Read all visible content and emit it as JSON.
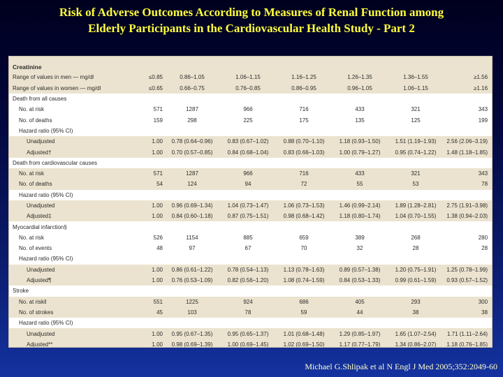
{
  "title": {
    "line1": "Risk of Adverse Outcomes According to Measures of Renal Function among",
    "line2": "Elderly Participants in the Cardiovascular Health Study - Part 2"
  },
  "table": {
    "header": "Creatinine",
    "rows": [
      {
        "label": "Range of values in men — mg/dl",
        "indent": 0,
        "shade": true,
        "values": [
          "≤0.85",
          "0.86–1.05",
          "1.06–1.15",
          "1.16–1.25",
          "1.26–1.35",
          "1.36–1.55",
          "≥1.56"
        ]
      },
      {
        "label": "Range of values in women — mg/dl",
        "indent": 0,
        "shade": true,
        "values": [
          "≤0.65",
          "0.66–0.75",
          "0.76–0.85",
          "0.86–0.95",
          "0.96–1.05",
          "1.06–1.15",
          "≥1.16"
        ]
      },
      {
        "label": "Death from all causes",
        "indent": 0,
        "shade": false,
        "values": []
      },
      {
        "label": "No. at risk",
        "indent": 1,
        "shade": false,
        "values": [
          "571",
          "1287",
          "966",
          "716",
          "433",
          "321",
          "343"
        ]
      },
      {
        "label": "No. of deaths",
        "indent": 1,
        "shade": false,
        "values": [
          "159",
          "298",
          "225",
          "175",
          "135",
          "125",
          "199"
        ]
      },
      {
        "label": "Hazard ratio (95% CI)",
        "indent": 1,
        "shade": false,
        "values": []
      },
      {
        "label": "Unadjusted",
        "indent": 2,
        "shade": true,
        "values": [
          "1.00",
          "0.78 (0.64–0.96)",
          "0.83 (0.67–1.02)",
          "0.88 (0.70–1.10)",
          "1.18 (0.93–1.50)",
          "1.51 (1.19–1.93)",
          "2.56 (2.06–3.19)"
        ]
      },
      {
        "label": "Adjusted†",
        "indent": 2,
        "shade": true,
        "values": [
          "1.00",
          "0.70 (0.57–0.85)",
          "0.84 (0.68–1.04)",
          "0.83 (0.66–1.03)",
          "1.00 (0.79–1.27)",
          "0.95 (0.74–1.22)",
          "1.48 (1.18–1.85)"
        ]
      },
      {
        "label": "Death from cardiovascular causes",
        "indent": 0,
        "shade": false,
        "values": []
      },
      {
        "label": "No. at risk",
        "indent": 1,
        "shade": true,
        "values": [
          "571",
          "1287",
          "966",
          "716",
          "433",
          "321",
          "343"
        ]
      },
      {
        "label": "No. of deaths",
        "indent": 1,
        "shade": true,
        "values": [
          "54",
          "124",
          "94",
          "72",
          "55",
          "53",
          "78"
        ]
      },
      {
        "label": "Hazard ratio (95% CI)",
        "indent": 1,
        "shade": false,
        "values": []
      },
      {
        "label": "Unadjusted",
        "indent": 2,
        "shade": true,
        "values": [
          "1.00",
          "0.96 (0.69–1.34)",
          "1.04 (0.73–1.47)",
          "1.06 (0.73–1.53)",
          "1.46 (0.99–2.14)",
          "1.89 (1.28–2.81)",
          "2.75 (1.91–3.98)"
        ]
      },
      {
        "label": "Adjusted‡",
        "indent": 2,
        "shade": true,
        "values": [
          "1.00",
          "0.84 (0.60–1.18)",
          "0.87 (0.75–1.51)",
          "0.98 (0.68–1.42)",
          "1.18 (0.80–1.74)",
          "1.04 (0.70–1.55)",
          "1.38 (0.94–2.03)"
        ]
      },
      {
        "label": "Myocardial infarction§",
        "indent": 0,
        "shade": false,
        "values": []
      },
      {
        "label": "No. at risk",
        "indent": 1,
        "shade": false,
        "values": [
          "526",
          "1154",
          "885",
          "659",
          "389",
          "268",
          "280"
        ]
      },
      {
        "label": "No. of events",
        "indent": 1,
        "shade": false,
        "values": [
          "48",
          "97",
          "67",
          "70",
          "32",
          "28",
          "28"
        ]
      },
      {
        "label": "Hazard ratio (95% CI)",
        "indent": 1,
        "shade": false,
        "values": []
      },
      {
        "label": "Unadjusted",
        "indent": 2,
        "shade": true,
        "values": [
          "1.00",
          "0.86 (0.61–1.22)",
          "0.78 (0.54–1.13)",
          "1.13 (0.78–1.63)",
          "0.89 (0.57–1.38)",
          "1.20 (0.75–1.91)",
          "1.25 (0.78–1.99)"
        ]
      },
      {
        "label": "Adjusted¶",
        "indent": 2,
        "shade": true,
        "values": [
          "1.00",
          "0.76 (0.53–1.09)",
          "0.82 (0.56–1.20)",
          "1.08 (0.74–1.59)",
          "0.84 (0.53–1.33)",
          "0.99 (0.61–1.59)",
          "0.93 (0.57–1.52)"
        ]
      },
      {
        "label": "Stroke",
        "indent": 0,
        "shade": false,
        "values": []
      },
      {
        "label": "No. at risk‖",
        "indent": 1,
        "shade": true,
        "values": [
          "551",
          "1225",
          "924",
          "686",
          "405",
          "293",
          "300"
        ]
      },
      {
        "label": "No. of strokes",
        "indent": 1,
        "shade": true,
        "values": [
          "45",
          "103",
          "78",
          "59",
          "44",
          "38",
          "38"
        ]
      },
      {
        "label": "Hazard ratio (95% CI)",
        "indent": 1,
        "shade": false,
        "values": []
      },
      {
        "label": "Unadjusted",
        "indent": 2,
        "shade": true,
        "values": [
          "1.00",
          "0.95 (0.67–1.35)",
          "0.95 (0.65–1.37)",
          "1.01 (0.68–1.48)",
          "1.29 (0.85–1.97)",
          "1.65 (1.07–2.54)",
          "1.71 (1.11–2.64)"
        ]
      },
      {
        "label": "Adjusted**",
        "indent": 2,
        "shade": true,
        "values": [
          "1.00",
          "0.98 (0.69–1.39)",
          "1.00 (0.69–1.45)",
          "1.02 (0.69–1.50)",
          "1.17 (0.77–1.79)",
          "1.34 (0.86–2.07)",
          "1.18 (0.76–1.85)"
        ]
      }
    ]
  },
  "citation": "Michael G.Shlipak et al N Engl J Med 2005;352:2049-60",
  "colors": {
    "title": "#ffff3c",
    "citation": "#ffffc8",
    "table_shade": "#ebe3cf",
    "background_top": "#00001e",
    "background_bottom": "#1432a0"
  }
}
